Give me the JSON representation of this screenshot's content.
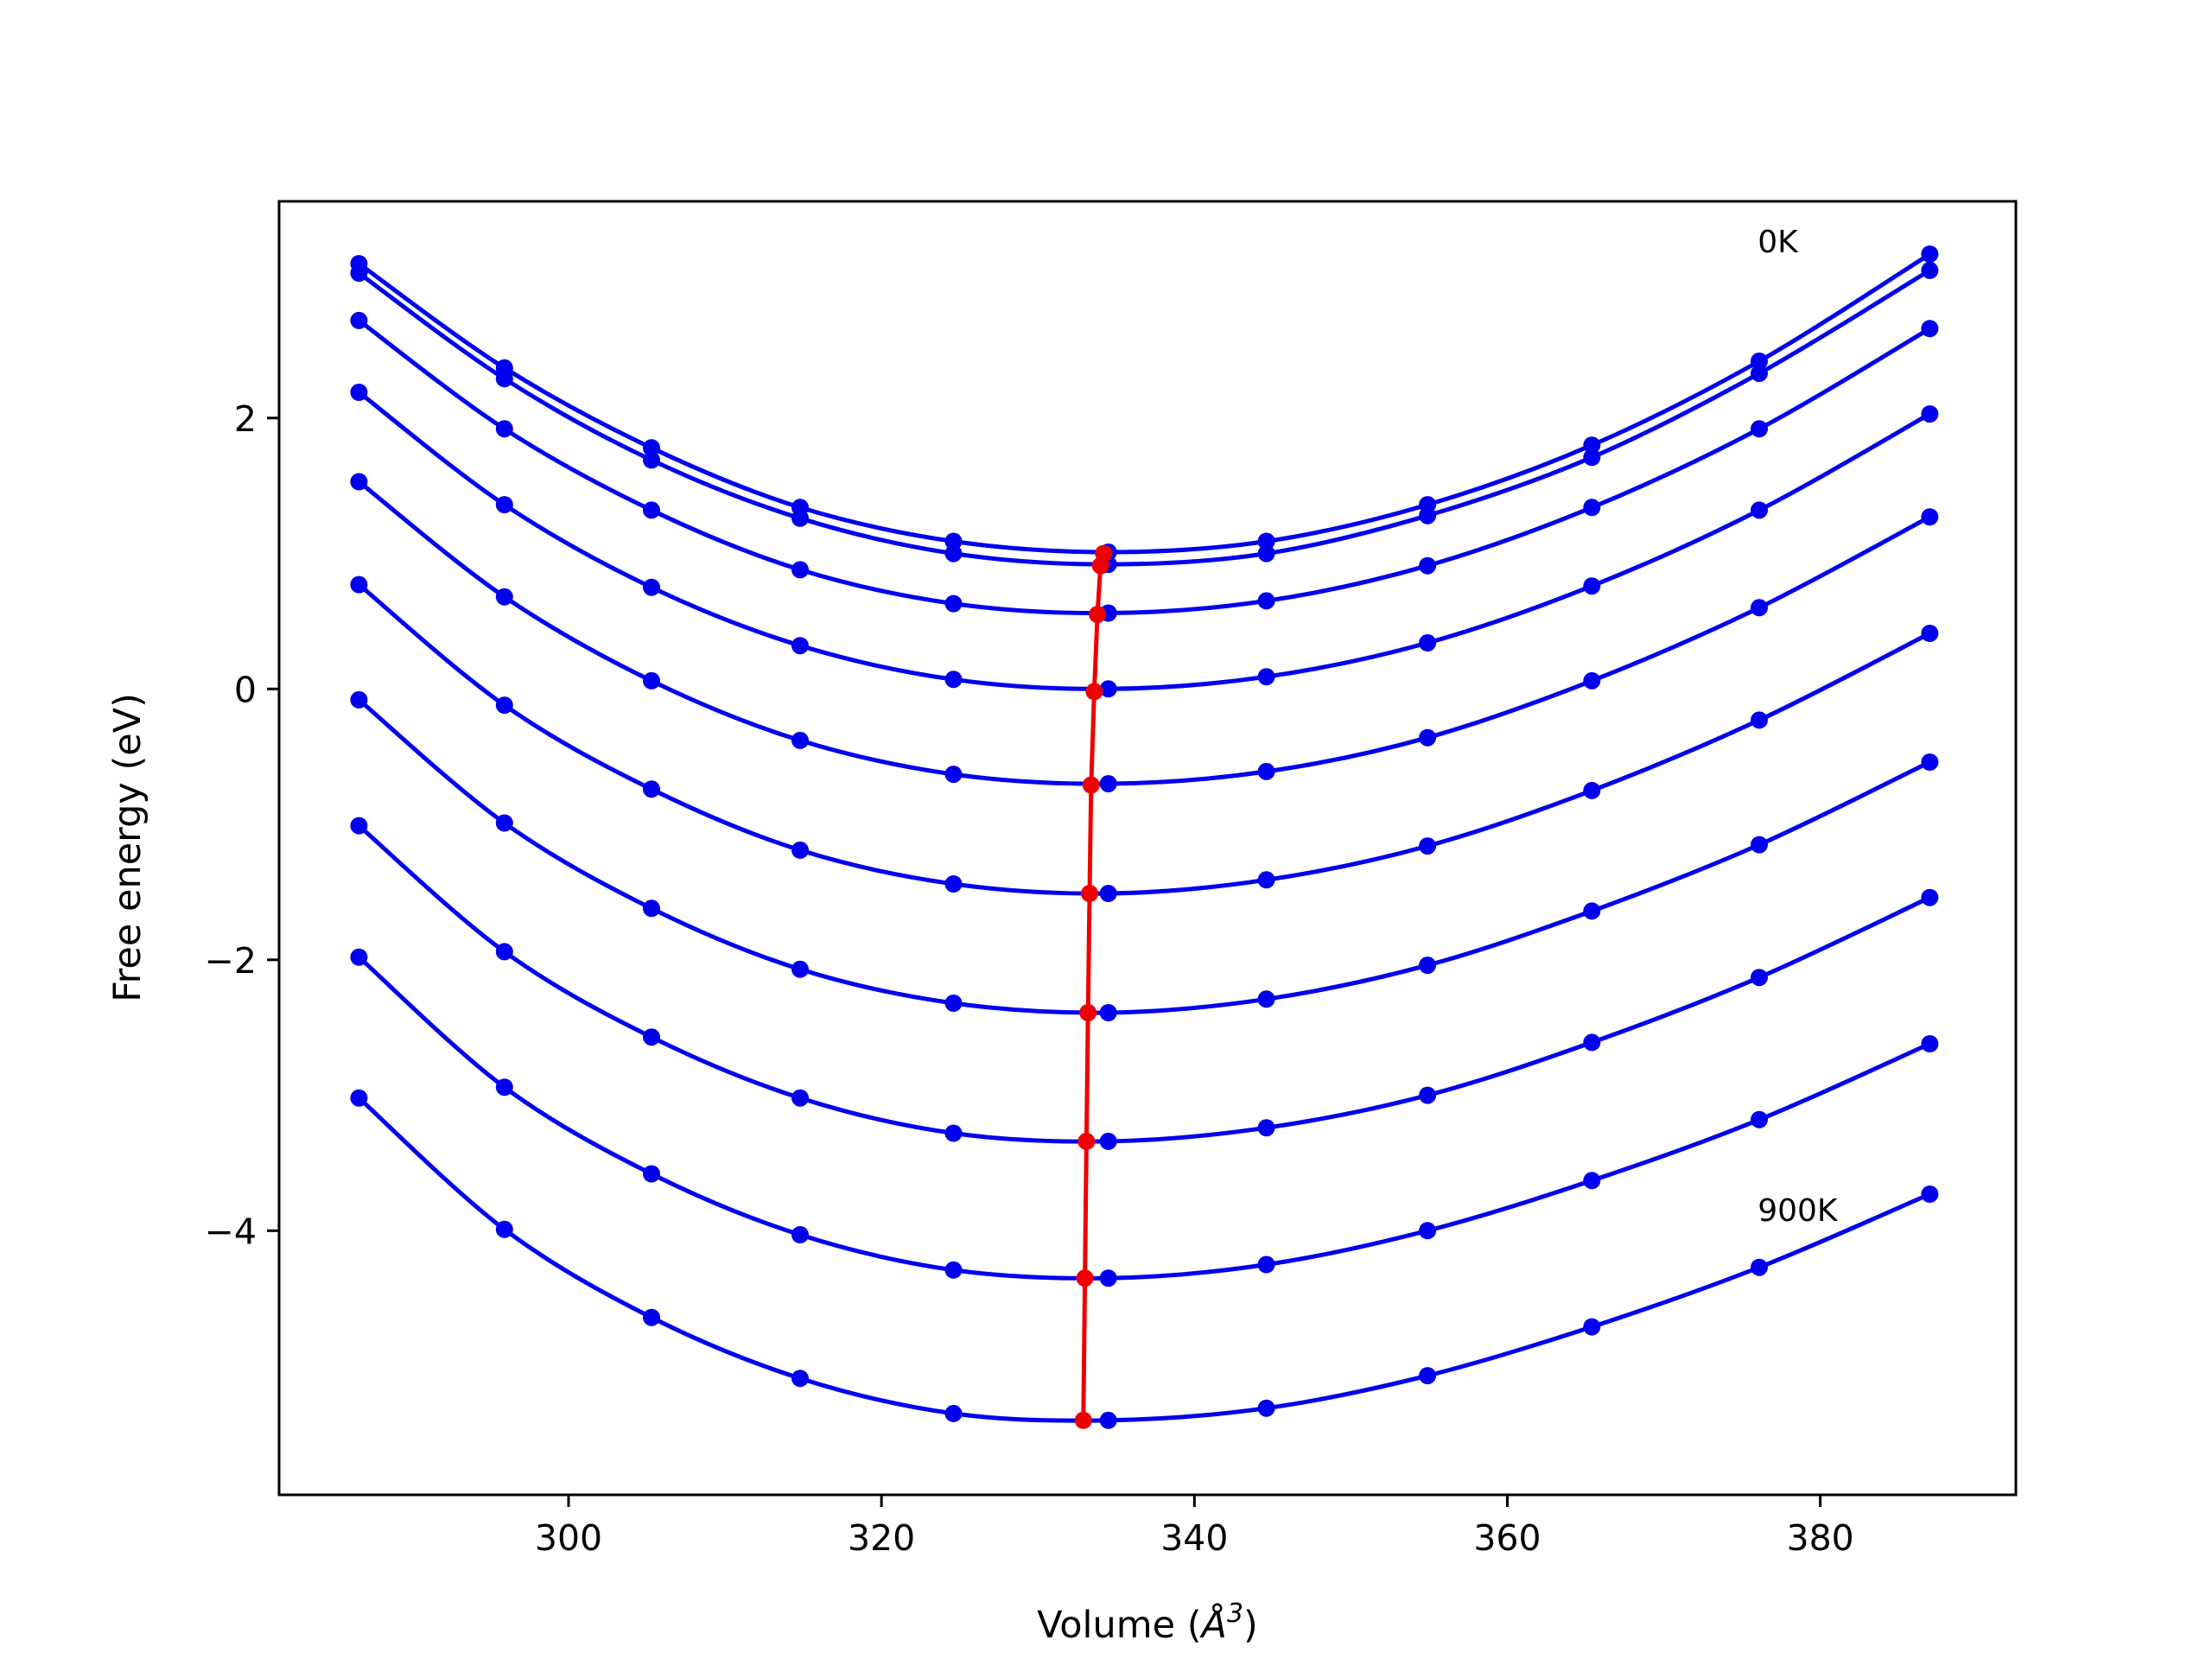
{
  "chart_data": {
    "type": "line",
    "title": "",
    "xlabel": "Volume (Å³)",
    "xlabel_parts": {
      "prefix": "Volume (",
      "symbol": "Å",
      "exponent": "3",
      "suffix": ")"
    },
    "ylabel": "Free energy (eV)",
    "xlim": [
      281.5,
      392.5
    ],
    "ylim": [
      -5.95,
      3.6
    ],
    "xticks": [
      300,
      320,
      340,
      360,
      380
    ],
    "yticks": [
      -4,
      -2,
      0,
      2
    ],
    "ytick_labels": [
      "−4",
      "−2",
      "0",
      "2"
    ],
    "grid": false,
    "legend": "none",
    "colors": {
      "curves": "#0000ee",
      "minimum_line": "#ee0000",
      "axes": "#000000"
    },
    "annotations": [
      {
        "text": "0K",
        "x": 376,
        "y": 3.3
      },
      {
        "text": "900K",
        "x": 376,
        "y": -3.85
      }
    ],
    "x": [
      286.6,
      295.9,
      305.3,
      314.8,
      324.6,
      334.5,
      344.6,
      354.9,
      365.4,
      376.1,
      387.0
    ],
    "series": [
      {
        "values": [
          3.14,
          2.37,
          1.78,
          1.34,
          1.09,
          1.01,
          1.09,
          1.36,
          1.8,
          2.42,
          3.21
        ]
      },
      {
        "values": [
          3.07,
          2.29,
          1.69,
          1.26,
          1.0,
          0.92,
          1.0,
          1.28,
          1.71,
          2.33,
          3.09
        ]
      },
      {
        "values": [
          2.72,
          1.92,
          1.32,
          0.88,
          0.63,
          0.56,
          0.65,
          0.91,
          1.34,
          1.92,
          2.66
        ]
      },
      {
        "values": [
          2.19,
          1.36,
          0.75,
          0.32,
          0.07,
          0.0,
          0.09,
          0.34,
          0.76,
          1.32,
          2.03
        ]
      },
      {
        "values": [
          1.53,
          0.68,
          0.06,
          -0.38,
          -0.63,
          -0.7,
          -0.61,
          -0.36,
          0.06,
          0.6,
          1.27
        ]
      },
      {
        "values": [
          0.77,
          -0.12,
          -0.74,
          -1.19,
          -1.44,
          -1.51,
          -1.41,
          -1.16,
          -0.75,
          -0.23,
          0.41
        ]
      },
      {
        "values": [
          -0.08,
          -0.99,
          -1.62,
          -2.07,
          -2.32,
          -2.39,
          -2.29,
          -2.04,
          -1.64,
          -1.15,
          -0.54
        ]
      },
      {
        "values": [
          -1.01,
          -1.94,
          -2.57,
          -3.02,
          -3.28,
          -3.34,
          -3.24,
          -3.0,
          -2.61,
          -2.13,
          -1.54
        ]
      },
      {
        "values": [
          -1.98,
          -2.94,
          -3.58,
          -4.03,
          -4.29,
          -4.35,
          -4.25,
          -4.0,
          -3.63,
          -3.18,
          -2.62
        ]
      },
      {
        "values": [
          -3.02,
          -3.99,
          -4.64,
          -5.09,
          -5.35,
          -5.4,
          -5.31,
          -5.07,
          -4.71,
          -4.27,
          -3.73
        ]
      }
    ],
    "minimum_line": {
      "x": [
        334.2,
        334.0,
        333.8,
        333.6,
        333.4,
        333.3,
        333.2,
        333.1,
        333.0,
        332.9
      ],
      "y": [
        1.0,
        0.91,
        0.55,
        -0.02,
        -0.71,
        -1.51,
        -2.39,
        -3.34,
        -4.35,
        -5.4
      ]
    }
  }
}
